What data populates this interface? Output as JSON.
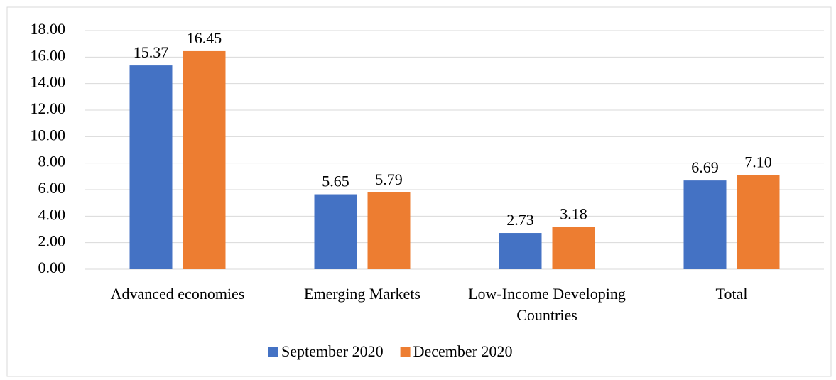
{
  "chart_data": {
    "type": "bar",
    "categories": [
      "Advanced economies",
      "Emerging Markets",
      "Low-Income Developing Countries",
      "Total"
    ],
    "series": [
      {
        "name": "September 2020",
        "color": "#4472c4",
        "values": [
          15.37,
          5.65,
          2.73,
          6.69
        ],
        "value_labels": [
          "15.37",
          "5.65",
          "2.73",
          "6.69"
        ]
      },
      {
        "name": "December 2020",
        "color": "#ed7d31",
        "values": [
          16.45,
          5.79,
          3.18,
          7.1
        ],
        "value_labels": [
          "16.45",
          "5.79",
          "3.18",
          "7.10"
        ]
      }
    ],
    "ylim": [
      0,
      18
    ],
    "yticks": [
      {
        "value": 0,
        "label": "0.00"
      },
      {
        "value": 2,
        "label": "2.00"
      },
      {
        "value": 4,
        "label": "4.00"
      },
      {
        "value": 6,
        "label": "6.00"
      },
      {
        "value": 8,
        "label": "8.00"
      },
      {
        "value": 10,
        "label": "10.00"
      },
      {
        "value": 12,
        "label": "12.00"
      },
      {
        "value": 14,
        "label": "14.00"
      },
      {
        "value": 16,
        "label": "16.00"
      },
      {
        "value": 18,
        "label": "18.00"
      }
    ],
    "grid": true,
    "legend": "bottom"
  }
}
